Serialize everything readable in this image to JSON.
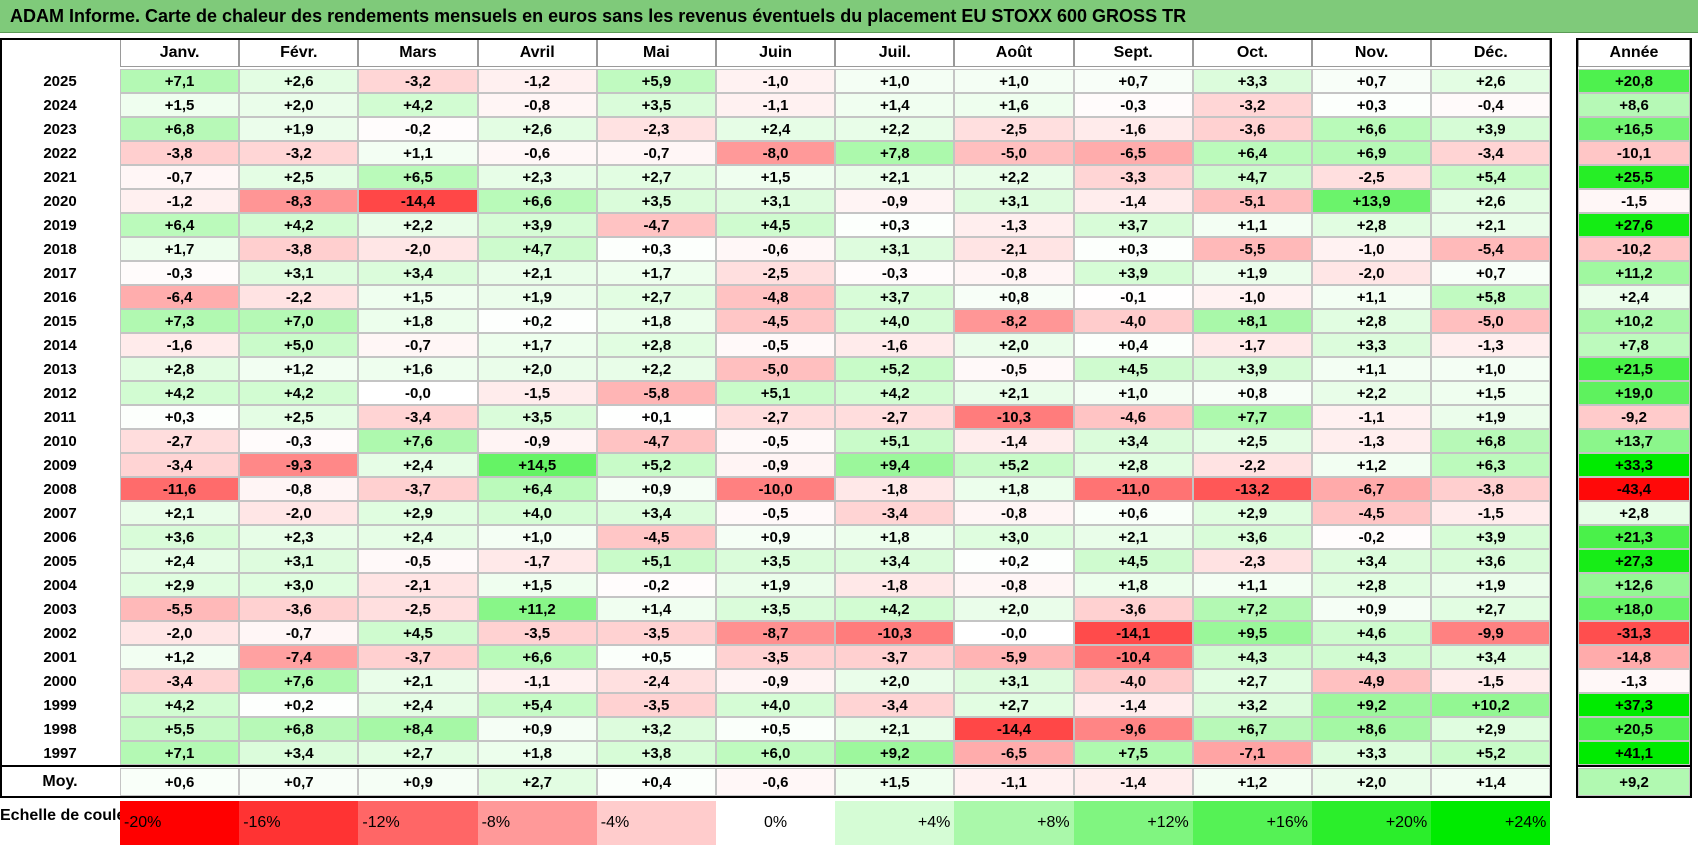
{
  "title": "ADAM Informe. Carte de chaleur des rendements mensuels en euros sans les revenus éventuels du placement EU STOXX 600 GROSS TR",
  "chart_data": {
    "type": "heatmap",
    "title": "ADAM Informe. Carte de chaleur des rendements mensuels en euros sans les revenus éventuels du placement EU STOXX 600 GROSS TR",
    "months": [
      "Janv.",
      "Févr.",
      "Mars",
      "Avril",
      "Mai",
      "Juin",
      "Juil.",
      "Août",
      "Sept.",
      "Oct.",
      "Nov.",
      "Déc."
    ],
    "year_header": "Année",
    "rows": [
      {
        "year": "2025",
        "values": [
          7.1,
          2.6,
          -3.2,
          -1.2,
          5.9,
          -1.0,
          1.0,
          1.0,
          0.7,
          3.3,
          0.7,
          2.6
        ],
        "annual": 20.8
      },
      {
        "year": "2024",
        "values": [
          1.5,
          2.0,
          4.2,
          -0.8,
          3.5,
          -1.1,
          1.4,
          1.6,
          -0.3,
          -3.2,
          0.3,
          -0.4
        ],
        "annual": 8.6
      },
      {
        "year": "2023",
        "values": [
          6.8,
          1.9,
          -0.2,
          2.6,
          -2.3,
          2.4,
          2.2,
          -2.5,
          -1.6,
          -3.6,
          6.6,
          3.9
        ],
        "annual": 16.5
      },
      {
        "year": "2022",
        "values": [
          -3.8,
          -3.2,
          1.1,
          -0.6,
          -0.7,
          -8.0,
          7.8,
          -5.0,
          -6.5,
          6.4,
          6.9,
          -3.4
        ],
        "annual": -10.1
      },
      {
        "year": "2021",
        "values": [
          -0.7,
          2.5,
          6.5,
          2.3,
          2.7,
          1.5,
          2.1,
          2.2,
          -3.3,
          4.7,
          -2.5,
          5.4
        ],
        "annual": 25.5
      },
      {
        "year": "2020",
        "values": [
          -1.2,
          -8.3,
          -14.4,
          6.6,
          3.5,
          3.1,
          -0.9,
          3.1,
          -1.4,
          -5.1,
          13.9,
          2.6
        ],
        "annual": -1.5
      },
      {
        "year": "2019",
        "values": [
          6.4,
          4.2,
          2.2,
          3.9,
          -4.7,
          4.5,
          0.3,
          -1.3,
          3.7,
          1.1,
          2.8,
          2.1
        ],
        "annual": 27.6
      },
      {
        "year": "2018",
        "values": [
          1.7,
          -3.8,
          -2.0,
          4.7,
          0.3,
          -0.6,
          3.1,
          -2.1,
          0.3,
          -5.5,
          -1.0,
          -5.4
        ],
        "annual": -10.2
      },
      {
        "year": "2017",
        "values": [
          -0.3,
          3.1,
          3.4,
          2.1,
          1.7,
          -2.5,
          -0.3,
          -0.8,
          3.9,
          1.9,
          -2.0,
          0.7
        ],
        "annual": 11.2
      },
      {
        "year": "2016",
        "values": [
          -6.4,
          -2.2,
          1.5,
          1.9,
          2.7,
          -4.8,
          3.7,
          0.8,
          -0.1,
          -1.0,
          1.1,
          5.8
        ],
        "annual": 2.4
      },
      {
        "year": "2015",
        "values": [
          7.3,
          7.0,
          1.8,
          0.2,
          1.8,
          -4.5,
          4.0,
          -8.2,
          -4.0,
          8.1,
          2.8,
          -5.0
        ],
        "annual": 10.2
      },
      {
        "year": "2014",
        "values": [
          -1.6,
          5.0,
          -0.7,
          1.7,
          2.8,
          -0.5,
          -1.6,
          2.0,
          0.4,
          -1.7,
          3.3,
          -1.3
        ],
        "annual": 7.8
      },
      {
        "year": "2013",
        "values": [
          2.8,
          1.2,
          1.6,
          2.0,
          2.2,
          -5.0,
          5.2,
          -0.5,
          4.5,
          3.9,
          1.1,
          1.0
        ],
        "annual": 21.5
      },
      {
        "year": "2012",
        "values": [
          4.2,
          4.2,
          -0.0,
          -1.5,
          -5.8,
          5.1,
          4.2,
          2.1,
          1.0,
          0.8,
          2.2,
          1.5
        ],
        "annual": 19.0
      },
      {
        "year": "2011",
        "values": [
          0.3,
          2.5,
          -3.4,
          3.5,
          0.1,
          -2.7,
          -2.7,
          -10.3,
          -4.6,
          7.7,
          -1.1,
          1.9
        ],
        "annual": -9.2
      },
      {
        "year": "2010",
        "values": [
          -2.7,
          -0.3,
          7.6,
          -0.9,
          -4.7,
          -0.5,
          5.1,
          -1.4,
          3.4,
          2.5,
          -1.3,
          6.8
        ],
        "annual": 13.7
      },
      {
        "year": "2009",
        "values": [
          -3.4,
          -9.3,
          2.4,
          14.5,
          5.2,
          -0.9,
          9.4,
          5.2,
          2.8,
          -2.2,
          1.2,
          6.3
        ],
        "annual": 33.3
      },
      {
        "year": "2008",
        "values": [
          -11.6,
          -0.8,
          -3.7,
          6.4,
          0.9,
          -10.0,
          -1.8,
          1.8,
          -11.0,
          -13.2,
          -6.7,
          -3.8
        ],
        "annual": -43.4
      },
      {
        "year": "2007",
        "values": [
          2.1,
          -2.0,
          2.9,
          4.0,
          3.4,
          -0.5,
          -3.4,
          -0.8,
          0.6,
          2.9,
          -4.5,
          -1.5
        ],
        "annual": 2.8
      },
      {
        "year": "2006",
        "values": [
          3.6,
          2.3,
          2.4,
          1.0,
          -4.5,
          0.9,
          1.8,
          3.0,
          2.1,
          3.6,
          -0.2,
          3.9
        ],
        "annual": 21.3
      },
      {
        "year": "2005",
        "values": [
          2.4,
          3.1,
          -0.5,
          -1.7,
          5.1,
          3.5,
          3.4,
          0.2,
          4.5,
          -2.3,
          3.4,
          3.6
        ],
        "annual": 27.3
      },
      {
        "year": "2004",
        "values": [
          2.9,
          3.0,
          -2.1,
          1.5,
          -0.2,
          1.9,
          -1.8,
          -0.8,
          1.8,
          1.1,
          2.8,
          1.9
        ],
        "annual": 12.6
      },
      {
        "year": "2003",
        "values": [
          -5.5,
          -3.6,
          -2.5,
          11.2,
          1.4,
          3.5,
          4.2,
          2.0,
          -3.6,
          7.2,
          0.9,
          2.7
        ],
        "annual": 18.0
      },
      {
        "year": "2002",
        "values": [
          -2.0,
          -0.7,
          4.5,
          -3.5,
          -3.5,
          -8.7,
          -10.3,
          -0.0,
          -14.1,
          9.5,
          4.6,
          -9.9
        ],
        "annual": -31.3
      },
      {
        "year": "2001",
        "values": [
          1.2,
          -7.4,
          -3.7,
          6.6,
          0.5,
          -3.5,
          -3.7,
          -5.9,
          -10.4,
          4.3,
          4.3,
          3.4
        ],
        "annual": -14.8
      },
      {
        "year": "2000",
        "values": [
          -3.4,
          7.6,
          2.1,
          -1.1,
          -2.4,
          -0.9,
          2.0,
          3.1,
          -4.0,
          2.7,
          -4.9,
          -1.5
        ],
        "annual": -1.3
      },
      {
        "year": "1999",
        "values": [
          4.2,
          0.2,
          2.4,
          5.4,
          -3.5,
          4.0,
          -3.4,
          2.7,
          -1.4,
          3.2,
          9.2,
          10.2
        ],
        "annual": 37.3
      },
      {
        "year": "1998",
        "values": [
          5.5,
          6.8,
          8.4,
          0.9,
          3.2,
          0.5,
          2.1,
          -14.4,
          -9.6,
          6.7,
          8.6,
          2.9
        ],
        "annual": 20.5
      },
      {
        "year": "1997",
        "values": [
          7.1,
          3.4,
          2.7,
          1.8,
          3.8,
          6.0,
          9.2,
          -6.5,
          7.5,
          -7.1,
          3.3,
          5.2
        ],
        "annual": 41.1
      }
    ],
    "average": {
      "label": "Moy.",
      "values": [
        0.6,
        0.7,
        0.9,
        2.7,
        0.4,
        -0.6,
        1.5,
        -1.1,
        -1.4,
        1.2,
        2.0,
        1.4
      ],
      "annual": 9.2
    },
    "scale": {
      "label": "Echelle de couleur",
      "stops": [
        "-20%",
        "-16%",
        "-12%",
        "-8%",
        "-4%",
        "0%",
        "+4%",
        "+8%",
        "+12%",
        "+16%",
        "+20%",
        "+24%"
      ]
    },
    "colors": {
      "negative_max": "#ff0000",
      "neutral": "#ffffff",
      "positive_max": "#00e000",
      "title_bg": "#7fca7a"
    }
  }
}
